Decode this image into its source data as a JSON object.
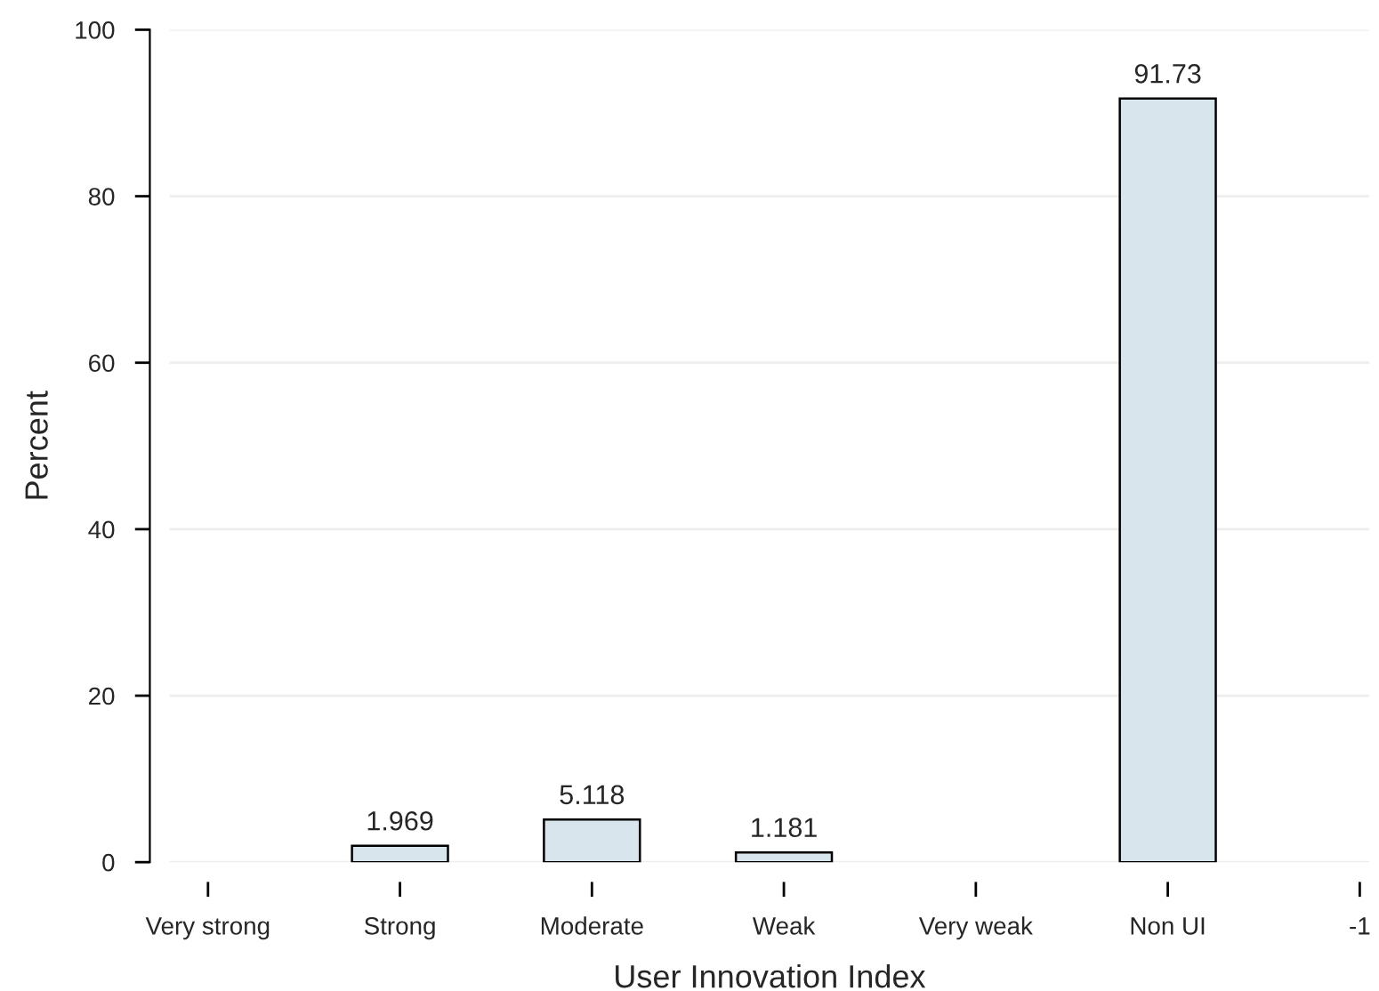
{
  "chart_data": {
    "type": "bar",
    "xlabel": "User Innovation Index",
    "ylabel": "Percent",
    "categories": [
      "Very strong",
      "Strong",
      "Moderate",
      "Weak",
      "Very weak",
      "Non UI",
      "-1"
    ],
    "values": [
      null,
      1.969,
      5.118,
      1.181,
      null,
      91.73,
      null
    ],
    "color": "#d9e5ec",
    "ylim": [
      0,
      100
    ],
    "yticks": [
      0,
      20,
      40,
      60,
      80,
      100
    ],
    "grid": "y",
    "data_labels": true
  }
}
